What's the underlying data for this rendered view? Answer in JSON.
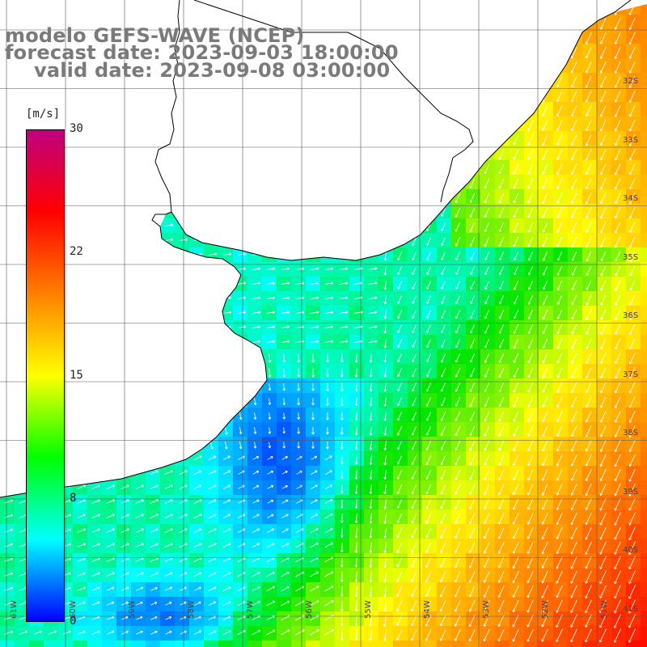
{
  "titles": {
    "line1": "modelo GEFS-WAVE (NCEP)",
    "line2": "forecast date: 2023-09-03 18:00:00",
    "line3": "valid date: 2023-09-08 03:00:00"
  },
  "colorbar": {
    "unit": "[m/s]",
    "ticks": [
      "30",
      "22",
      "15",
      "8",
      "0"
    ],
    "tick_values": [
      30,
      22,
      15,
      8,
      0
    ],
    "min": 0,
    "max": 30,
    "colors": [
      "#0000ff",
      "#00ffff",
      "#00ff00",
      "#ffff00",
      "#ff8000",
      "#ff0000",
      "#c00080"
    ]
  },
  "map": {
    "lat_labels": [
      "32S",
      "33S",
      "34S",
      "35S",
      "36S",
      "37S",
      "38S",
      "39S",
      "40S",
      "41S"
    ],
    "lon_labels": [
      "61W",
      "60W",
      "59W",
      "58W",
      "57W",
      "56W",
      "55W",
      "54W",
      "53W",
      "52W",
      "51W"
    ],
    "land_color": "#ffffff",
    "grid_color": "#555555",
    "coast_color": "#000000",
    "arrow_color": "#ffffff"
  }
}
